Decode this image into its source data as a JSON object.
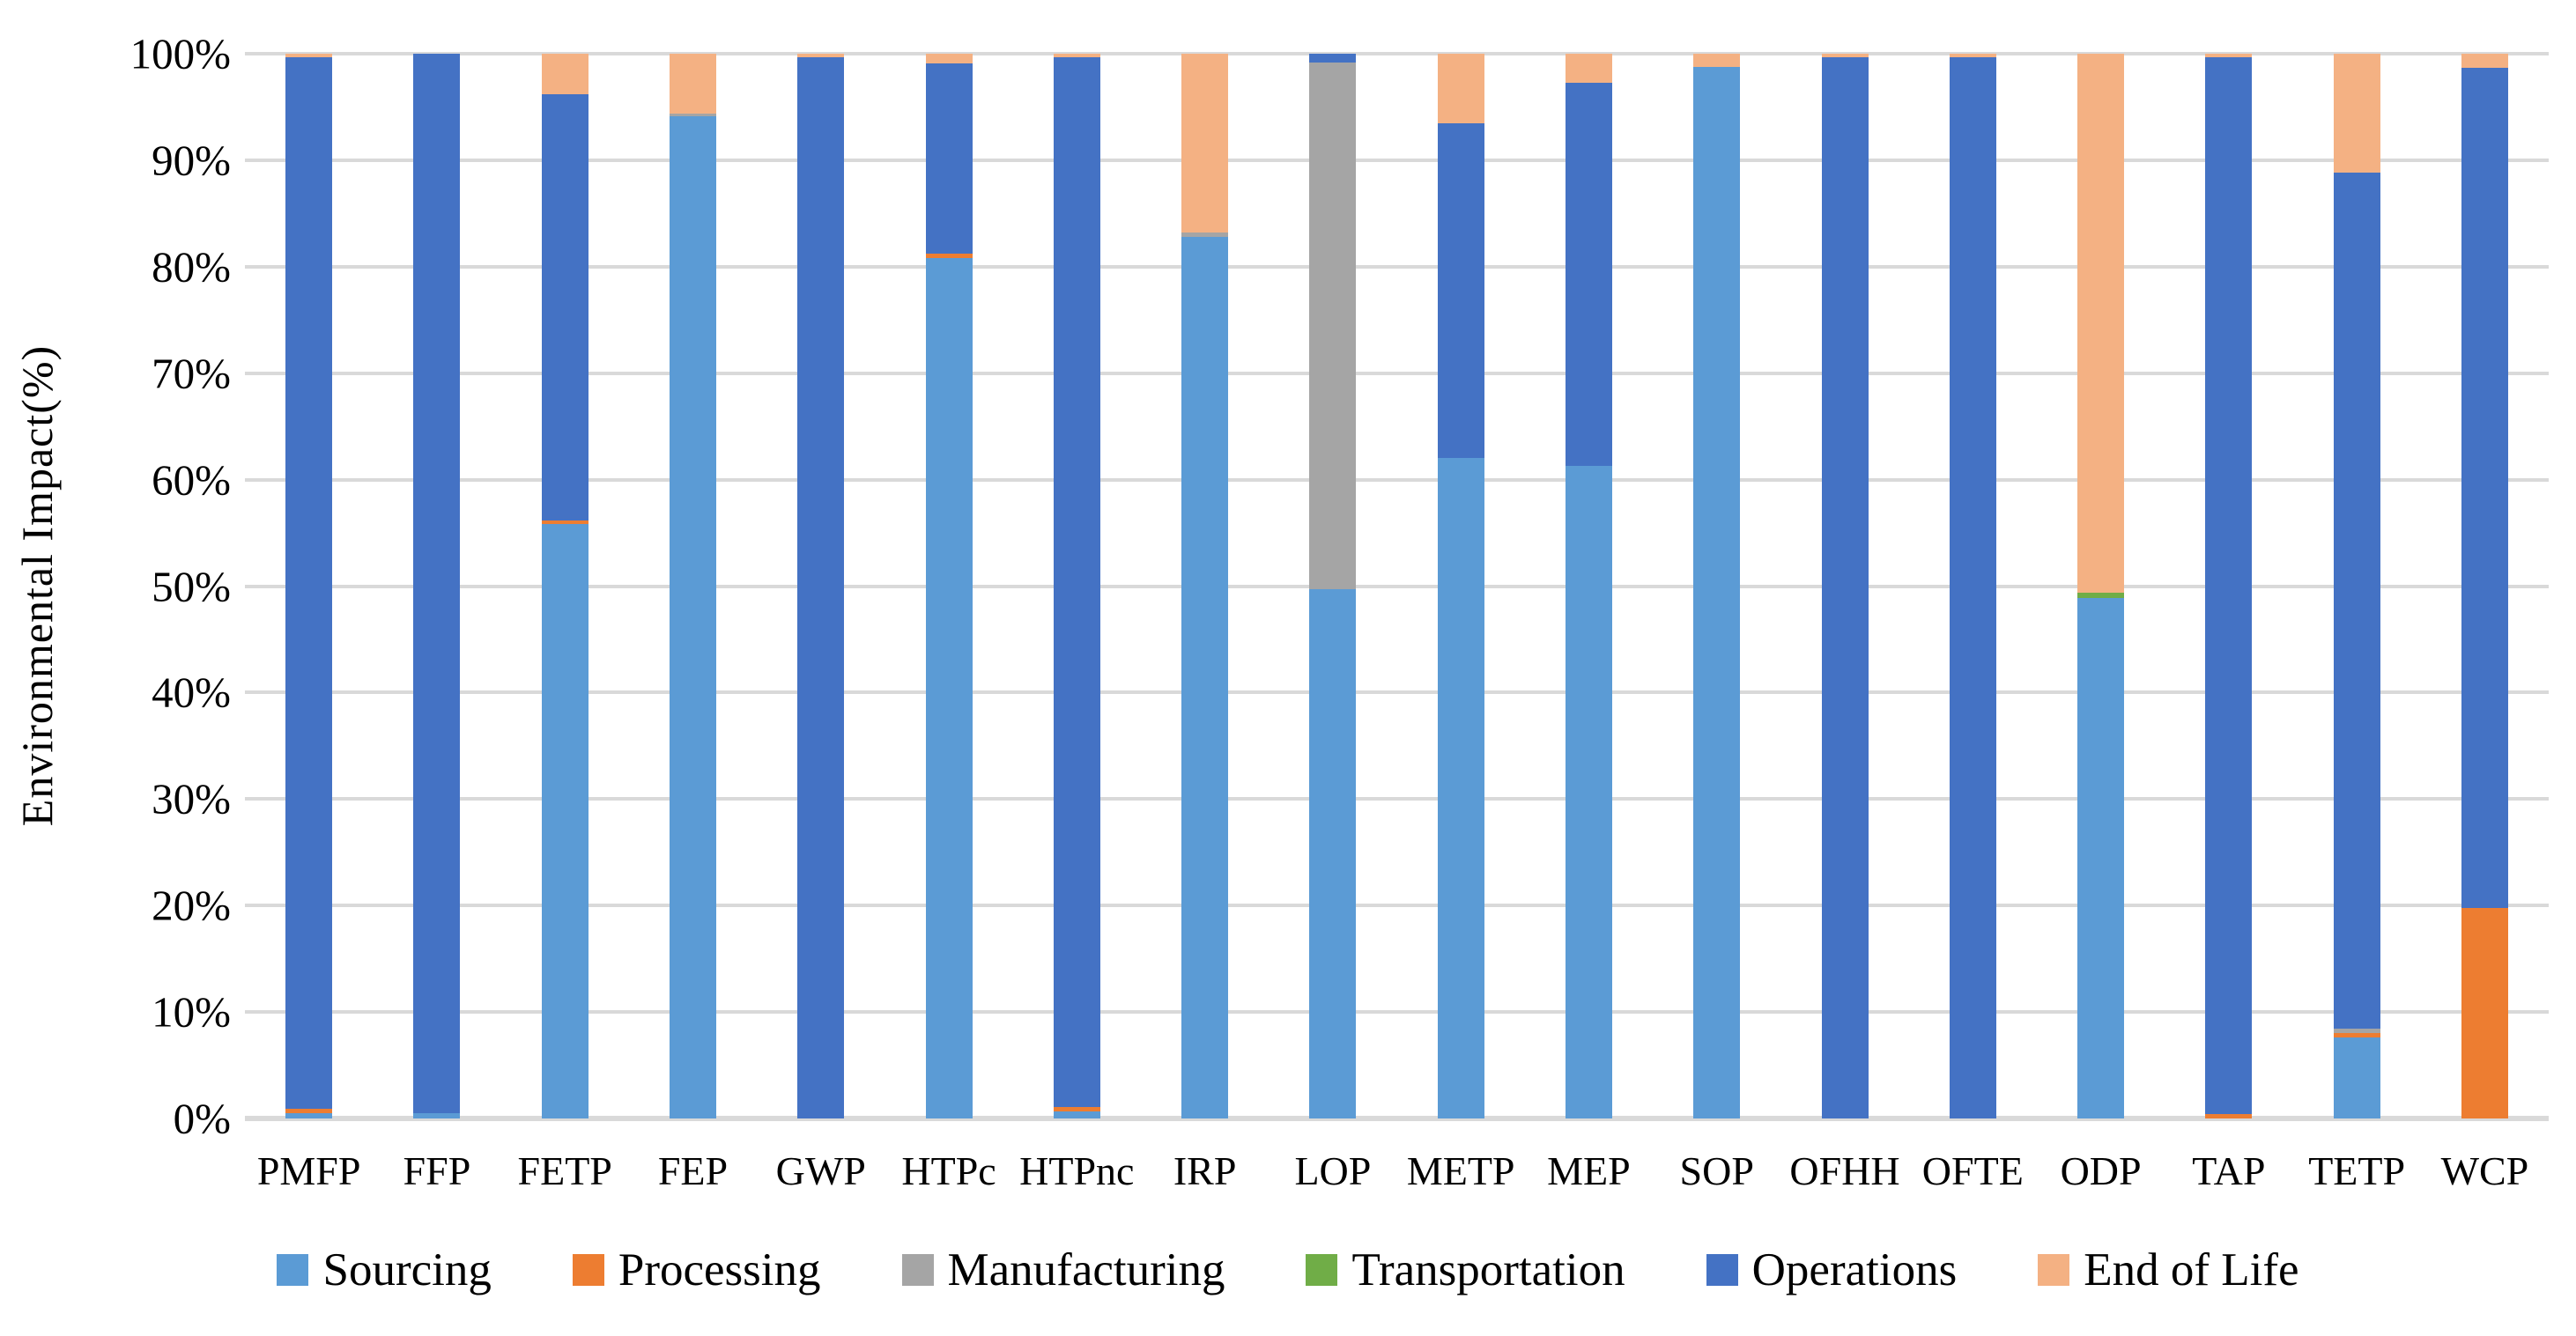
{
  "figure": {
    "background_color": "#FFFFFF",
    "text_color": "#000000",
    "gridline_color": "#D9D9D9",
    "y_axis_title": "Environmental Impact(%)"
  },
  "colors": {
    "sourcing": "#5B9BD5",
    "processing": "#ED7D31",
    "manufacturing": "#A5A5A5",
    "transportation": "#70AD47",
    "operations": "#4472C4",
    "end_of_life": "#F4B183"
  },
  "chart_data": {
    "type": "bar",
    "variant": "stacked-100-percent-column",
    "title": "",
    "xlabel": "",
    "ylabel": "Environmental Impact(%)",
    "ylim": [
      0,
      100
    ],
    "grid": true,
    "legend_position": "bottom",
    "y_tick_labels": [
      "100%",
      "90%",
      "80%",
      "70%",
      "60%",
      "50%",
      "40%",
      "30%",
      "20%",
      "10%",
      "0%"
    ],
    "categories": [
      "PMFP",
      "FFP",
      "FETP",
      "FEP",
      "GWP",
      "HTPc",
      "HTPnc",
      "IRP",
      "LOP",
      "METP",
      "MEP",
      "SOP",
      "OFHH",
      "OFTE",
      "ODP",
      "TAP",
      "TETP",
      "WCP"
    ],
    "series": [
      {
        "name": "Sourcing",
        "color_key": "sourcing",
        "values": [
          0.5,
          0.5,
          55.8,
          94.1,
          0,
          80.8,
          0.7,
          82.8,
          49.7,
          62.0,
          61.3,
          98.8,
          0,
          0,
          48.9,
          0,
          7.6,
          0
        ]
      },
      {
        "name": "Processing",
        "color_key": "processing",
        "values": [
          0.4,
          0,
          0.4,
          0,
          0,
          0.4,
          0.4,
          0,
          0,
          0,
          0,
          0,
          0,
          0,
          0,
          0.4,
          0.4,
          19.8
        ]
      },
      {
        "name": "Manufacturing",
        "color_key": "manufacturing",
        "values": [
          0,
          0,
          0,
          0.3,
          0,
          0,
          0,
          0.4,
          49.5,
          0,
          0,
          0,
          0,
          0,
          0,
          0,
          0.4,
          0
        ]
      },
      {
        "name": "Transportation",
        "color_key": "transportation",
        "values": [
          0,
          0,
          0,
          0,
          0,
          0,
          0,
          0,
          0,
          0,
          0,
          0,
          0,
          0,
          0.5,
          0,
          0,
          0
        ]
      },
      {
        "name": "Operations",
        "color_key": "operations",
        "values": [
          98.8,
          99.5,
          40.0,
          0,
          99.7,
          17.9,
          98.6,
          0,
          0.8,
          31.5,
          36.0,
          0,
          99.7,
          99.7,
          0,
          99.3,
          80.4,
          78.9
        ]
      },
      {
        "name": "End of Life",
        "color_key": "end_of_life",
        "values": [
          0.3,
          0,
          3.8,
          5.6,
          0.3,
          0.9,
          0.3,
          16.8,
          0,
          6.5,
          2.7,
          1.2,
          0.3,
          0.3,
          50.6,
          0.3,
          11.2,
          1.3
        ]
      }
    ]
  }
}
